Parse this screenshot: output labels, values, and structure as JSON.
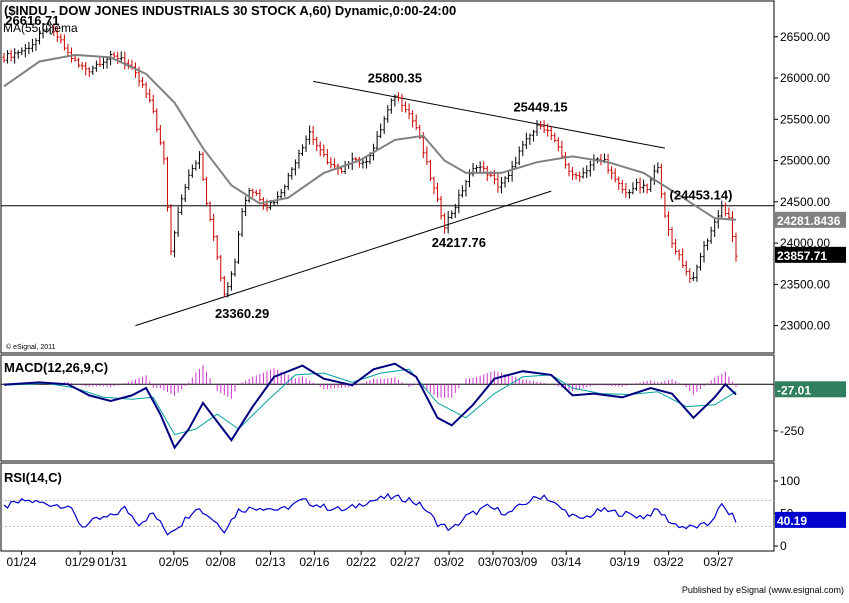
{
  "header": {
    "title": "($INDU - DOW JONES INDUSTRIALS 30 STOCK A,60) Dynamic,0:00-24:00",
    "ma_label": "MA(55,C)ema"
  },
  "footer": {
    "publisher": "Published by eSignal (www.esignal.com)",
    "copyright": "© eSignal, 2011"
  },
  "colors": {
    "background": "#ffffff",
    "frame": "#000000",
    "ma_line": "#808080",
    "price_up": "#000000",
    "price_down": "#cc0000",
    "macd_line": "#000080",
    "signal_line": "#00a0a0",
    "histogram": "#cc33cc",
    "rsi_line": "#0000cc",
    "rsi_band": "#bbbbbb"
  },
  "chart_data": [
    {
      "type": "line",
      "panel": "price",
      "series_note": "hourly candlesticks (black up, red down) with 55-period EMA",
      "x_ticks": [
        "01/24",
        "01/29",
        "01/31",
        "02/05",
        "02/08",
        "02/13",
        "02/16",
        "02/22",
        "02/27",
        "03/02",
        "03/07",
        "03/09",
        "03/14",
        "03/19",
        "03/22",
        "03/27"
      ],
      "y_ticks": [
        "23000.00",
        "23500.00",
        "24000.00",
        "24500.00",
        "25000.00",
        "25500.00",
        "26000.00",
        "26500.00"
      ],
      "ylim": [
        22850,
        26800
      ],
      "close_path": [
        [
          0,
          26250
        ],
        [
          3,
          26300
        ],
        [
          6,
          26350
        ],
        [
          9,
          26450
        ],
        [
          12,
          26616.71
        ],
        [
          15,
          26500
        ],
        [
          18,
          26300
        ],
        [
          21,
          26150
        ],
        [
          24,
          26100
        ],
        [
          27,
          26200
        ],
        [
          30,
          26250
        ],
        [
          33,
          26250
        ],
        [
          36,
          26100
        ],
        [
          39,
          25900
        ],
        [
          42,
          25600
        ],
        [
          45,
          25000
        ],
        [
          47,
          23900
        ],
        [
          49,
          24400
        ],
        [
          51,
          24700
        ],
        [
          53,
          24900
        ],
        [
          55,
          25050
        ],
        [
          57,
          24500
        ],
        [
          59,
          24100
        ],
        [
          62,
          23360.29
        ],
        [
          65,
          23800
        ],
        [
          67,
          24400
        ],
        [
          69,
          24650
        ],
        [
          71,
          24600
        ],
        [
          74,
          24450
        ],
        [
          77,
          24550
        ],
        [
          80,
          24800
        ],
        [
          83,
          25100
        ],
        [
          86,
          25350
        ],
        [
          89,
          25100
        ],
        [
          92,
          24950
        ],
        [
          95,
          24850
        ],
        [
          98,
          25050
        ],
        [
          101,
          24950
        ],
        [
          104,
          25150
        ],
        [
          107,
          25500
        ],
        [
          110,
          25800.35
        ],
        [
          113,
          25650
        ],
        [
          116,
          25400
        ],
        [
          119,
          24950
        ],
        [
          122,
          24500
        ],
        [
          124,
          24217.76
        ],
        [
          127,
          24450
        ],
        [
          130,
          24750
        ],
        [
          133,
          24950
        ],
        [
          136,
          24850
        ],
        [
          139,
          24700
        ],
        [
          142,
          24800
        ],
        [
          145,
          25100
        ],
        [
          148,
          25300
        ],
        [
          151,
          25449.15
        ],
        [
          154,
          25300
        ],
        [
          157,
          25050
        ],
        [
          160,
          24800
        ],
        [
          163,
          24850
        ],
        [
          166,
          25000
        ],
        [
          169,
          25000
        ],
        [
          172,
          24750
        ],
        [
          175,
          24600
        ],
        [
          178,
          24700
        ],
        [
          181,
          24650
        ],
        [
          184,
          24950
        ],
        [
          186,
          24300
        ],
        [
          188,
          24000
        ],
        [
          190,
          23850
        ],
        [
          192,
          23650
        ],
        [
          194,
          23550
        ],
        [
          196,
          23850
        ],
        [
          198,
          24050
        ],
        [
          200,
          24250
        ],
        [
          202,
          24453.14
        ],
        [
          204,
          24281.84
        ],
        [
          206,
          23857.71
        ]
      ],
      "ma_path": [
        [
          0,
          25900
        ],
        [
          10,
          26200
        ],
        [
          20,
          26280
        ],
        [
          30,
          26250
        ],
        [
          40,
          26050
        ],
        [
          48,
          25700
        ],
        [
          56,
          25150
        ],
        [
          64,
          24700
        ],
        [
          72,
          24480
        ],
        [
          80,
          24550
        ],
        [
          90,
          24850
        ],
        [
          100,
          25000
        ],
        [
          110,
          25250
        ],
        [
          118,
          25300
        ],
        [
          124,
          25000
        ],
        [
          130,
          24850
        ],
        [
          140,
          24850
        ],
        [
          150,
          24980
        ],
        [
          160,
          25050
        ],
        [
          170,
          24980
        ],
        [
          180,
          24850
        ],
        [
          190,
          24580
        ],
        [
          200,
          24300
        ],
        [
          206,
          24281.84
        ]
      ],
      "annotations": [
        {
          "label": "26616.71",
          "x": 8,
          "y": 26616.71,
          "anchor": "middle",
          "dy": -2
        },
        {
          "label": "25800.35",
          "x": 110,
          "y": 25800.35,
          "anchor": "middle",
          "dy": -12
        },
        {
          "label": "25449.15",
          "x": 151,
          "y": 25449.15,
          "anchor": "middle",
          "dy": -12
        },
        {
          "label": "(24453.14)",
          "x": 205,
          "y": 24453.14,
          "anchor": "end",
          "dy": -6
        },
        {
          "label": "24217.76",
          "x": 128,
          "y": 24217.76,
          "anchor": "middle",
          "dy": 22
        },
        {
          "label": "23360.29",
          "x": 67,
          "y": 23360.29,
          "anchor": "middle",
          "dy": 22
        }
      ],
      "trendlines": [
        {
          "from": [
            87,
            25960
          ],
          "to": [
            186,
            25150
          ]
        },
        {
          "from": [
            37,
            23000
          ],
          "to": [
            154,
            24630
          ]
        }
      ],
      "horizontal_line": 24453.14,
      "price_flags": [
        {
          "label": "24281.8436",
          "value": 24281.84
        },
        {
          "label": "23857.71",
          "value": 23857.71
        }
      ]
    },
    {
      "type": "line",
      "panel": "macd",
      "title": "MACD(12,26,9,C)",
      "y_ticks": [
        "-250"
      ],
      "ylim": [
        -390,
        130
      ],
      "zero_flag": "-27.01",
      "macd_path": [
        [
          0,
          -2
        ],
        [
          10,
          10
        ],
        [
          18,
          0
        ],
        [
          24,
          -60
        ],
        [
          30,
          -90
        ],
        [
          36,
          -60
        ],
        [
          40,
          -20
        ],
        [
          44,
          -160
        ],
        [
          48,
          -340
        ],
        [
          52,
          -240
        ],
        [
          56,
          -100
        ],
        [
          60,
          -200
        ],
        [
          64,
          -300
        ],
        [
          70,
          -120
        ],
        [
          76,
          40
        ],
        [
          84,
          100
        ],
        [
          90,
          30
        ],
        [
          98,
          -5
        ],
        [
          104,
          80
        ],
        [
          110,
          110
        ],
        [
          116,
          40
        ],
        [
          122,
          -180
        ],
        [
          126,
          -220
        ],
        [
          132,
          -110
        ],
        [
          138,
          30
        ],
        [
          146,
          70
        ],
        [
          154,
          50
        ],
        [
          160,
          -60
        ],
        [
          166,
          -50
        ],
        [
          174,
          -70
        ],
        [
          182,
          -20
        ],
        [
          188,
          -50
        ],
        [
          194,
          -180
        ],
        [
          200,
          -70
        ],
        [
          203,
          0
        ],
        [
          206,
          -55
        ]
      ],
      "signal_path": [
        [
          0,
          -5
        ],
        [
          12,
          5
        ],
        [
          20,
          -20
        ],
        [
          28,
          -70
        ],
        [
          36,
          -80
        ],
        [
          42,
          -70
        ],
        [
          48,
          -270
        ],
        [
          54,
          -240
        ],
        [
          60,
          -160
        ],
        [
          66,
          -240
        ],
        [
          74,
          -90
        ],
        [
          82,
          50
        ],
        [
          90,
          60
        ],
        [
          98,
          10
        ],
        [
          106,
          60
        ],
        [
          114,
          80
        ],
        [
          122,
          -100
        ],
        [
          130,
          -180
        ],
        [
          138,
          -50
        ],
        [
          146,
          40
        ],
        [
          154,
          50
        ],
        [
          160,
          -20
        ],
        [
          168,
          -50
        ],
        [
          176,
          -55
        ],
        [
          184,
          -40
        ],
        [
          192,
          -120
        ],
        [
          200,
          -110
        ],
        [
          206,
          -40
        ]
      ],
      "histogram_series": "macd_minus_signal"
    },
    {
      "type": "line",
      "panel": "rsi",
      "title": "RSI(14,C)",
      "y_ticks": [
        "100",
        "50",
        "0"
      ],
      "ylim": [
        0,
        120
      ],
      "bands": [
        70,
        30
      ],
      "last_value": "40.19",
      "rsi_path": [
        [
          0,
          60
        ],
        [
          6,
          70
        ],
        [
          12,
          65
        ],
        [
          18,
          62
        ],
        [
          22,
          30
        ],
        [
          26,
          40
        ],
        [
          30,
          45
        ],
        [
          34,
          58
        ],
        [
          38,
          35
        ],
        [
          42,
          50
        ],
        [
          46,
          20
        ],
        [
          50,
          35
        ],
        [
          54,
          60
        ],
        [
          58,
          45
        ],
        [
          62,
          25
        ],
        [
          66,
          55
        ],
        [
          72,
          60
        ],
        [
          78,
          55
        ],
        [
          84,
          70
        ],
        [
          90,
          60
        ],
        [
          96,
          55
        ],
        [
          102,
          68
        ],
        [
          108,
          75
        ],
        [
          114,
          72
        ],
        [
          118,
          60
        ],
        [
          122,
          35
        ],
        [
          126,
          25
        ],
        [
          130,
          45
        ],
        [
          136,
          60
        ],
        [
          142,
          50
        ],
        [
          148,
          70
        ],
        [
          152,
          78
        ],
        [
          156,
          60
        ],
        [
          162,
          40
        ],
        [
          168,
          55
        ],
        [
          174,
          50
        ],
        [
          180,
          45
        ],
        [
          184,
          55
        ],
        [
          188,
          35
        ],
        [
          192,
          28
        ],
        [
          198,
          32
        ],
        [
          202,
          62
        ],
        [
          206,
          40
        ]
      ]
    }
  ]
}
